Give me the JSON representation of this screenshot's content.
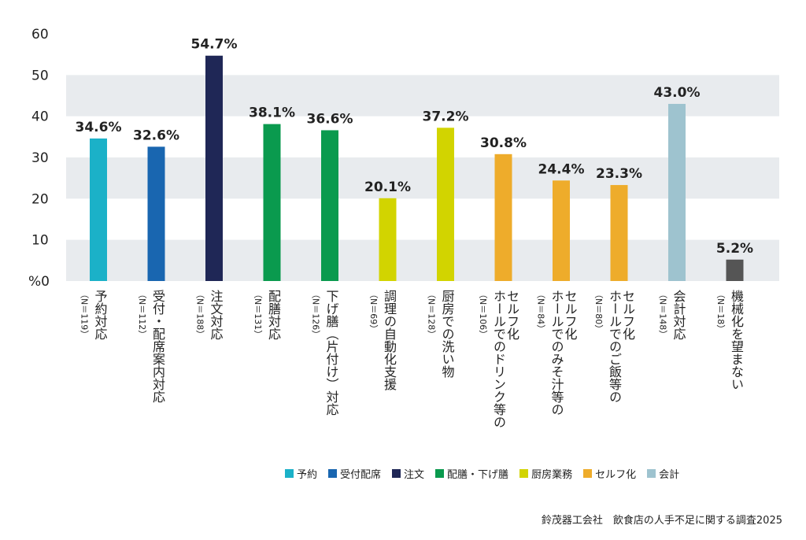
{
  "chart_data": {
    "type": "bar",
    "ylim": [
      0,
      60
    ],
    "yticks": [
      "60",
      "50",
      "40",
      "30",
      "20",
      "10"
    ],
    "ybase_label": "%0",
    "grid_bands": true,
    "categories": [
      {
        "label": [
          "予約対応"
        ],
        "n": "（N＝119）",
        "value": 34.6,
        "value_label": "34.6%",
        "group": "予約"
      },
      {
        "label": [
          "受付・配席案内対応"
        ],
        "n": "（N＝112）",
        "value": 32.6,
        "value_label": "32.6%",
        "group": "受付配席"
      },
      {
        "label": [
          "注文対応"
        ],
        "n": "（N＝188）",
        "value": 54.7,
        "value_label": "54.7%",
        "group": "注文"
      },
      {
        "label": [
          "配膳対応"
        ],
        "n": "（N＝131）",
        "value": 38.1,
        "value_label": "38.1%",
        "group": "配膳・下げ膳"
      },
      {
        "label": [
          "下げ膳（片付け）対応"
        ],
        "n": "（N＝126）",
        "value": 36.6,
        "value_label": "36.6%",
        "group": "配膳・下げ膳"
      },
      {
        "label": [
          "調理の自動化支援"
        ],
        "n": "（N＝69）",
        "value": 20.1,
        "value_label": "20.1%",
        "group": "厨房業務"
      },
      {
        "label": [
          "厨房での洗い物"
        ],
        "n": "（N＝128）",
        "value": 37.2,
        "value_label": "37.2%",
        "group": "厨房業務"
      },
      {
        "label": [
          "ホールでのドリンク等の",
          "セルフ化"
        ],
        "n": "（N＝106）",
        "value": 30.8,
        "value_label": "30.8%",
        "group": "セルフ化"
      },
      {
        "label": [
          "ホールでのみそ汁等の",
          "セルフ化"
        ],
        "n": "（N＝84）",
        "value": 24.4,
        "value_label": "24.4%",
        "group": "セルフ化"
      },
      {
        "label": [
          "ホールでのご飯等の",
          "セルフ化"
        ],
        "n": "（N＝80）",
        "value": 23.3,
        "value_label": "23.3%",
        "group": "セルフ化"
      },
      {
        "label": [
          "会計対応"
        ],
        "n": "（N＝148）",
        "value": 43.0,
        "value_label": "43.0%",
        "group": "会計"
      },
      {
        "label": [
          "機械化を望まない"
        ],
        "n": "（N＝18）",
        "value": 5.2,
        "value_label": "5.2%",
        "group": "機械化を望まない"
      }
    ],
    "legend": [
      {
        "name": "予約",
        "color": "#1bb1c8"
      },
      {
        "name": "受付配席",
        "color": "#1966b0"
      },
      {
        "name": "注文",
        "color": "#1f2756"
      },
      {
        "name": "配膳・下げ膳",
        "color": "#0a9a4e"
      },
      {
        "name": "厨房業務",
        "color": "#d2d400"
      },
      {
        "name": "セルフ化",
        "color": "#eeac2b"
      },
      {
        "name": "会計",
        "color": "#9ec3cf"
      }
    ],
    "group_colors": {
      "予約": "#1bb1c8",
      "受付配席": "#1966b0",
      "注文": "#1f2756",
      "配膳・下げ膳": "#0a9a4e",
      "厨房業務": "#d2d400",
      "セルフ化": "#eeac2b",
      "会計": "#9ec3cf",
      "機械化を望まない": "#555555"
    }
  },
  "source": "鈴茂器工会社　飲食店の人手不足に関する調査2025"
}
